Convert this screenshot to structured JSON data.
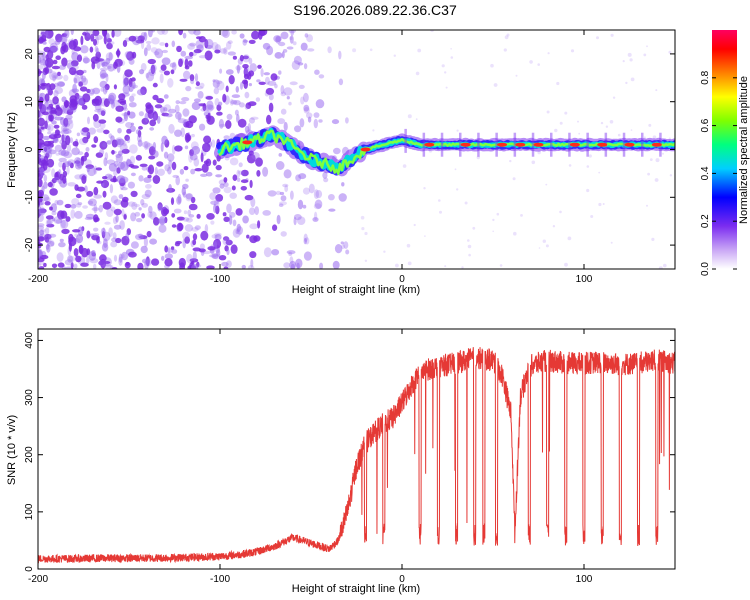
{
  "figure": {
    "title": "S196.2026.089.22.36.C37"
  },
  "colors": {
    "snr_line": "#e53935",
    "spectrogram_noise": "#9b6cf0",
    "spectrogram_ridge": "#00e5c0"
  },
  "chart_data": [
    {
      "type": "heatmap",
      "title": "S196.2026.089.22.36.C37",
      "xlabel": "Height of straight line (km)",
      "ylabel": "Frequency (Hz)",
      "xlim": [
        -200,
        150
      ],
      "ylim": [
        -25,
        25
      ],
      "xticks": [
        {
          "value": -200,
          "label": "-200"
        },
        {
          "value": -100,
          "label": "-100"
        },
        {
          "value": 0,
          "label": "0"
        },
        {
          "value": 100,
          "label": "100"
        }
      ],
      "yticks": [
        {
          "value": 20,
          "label": "20"
        },
        {
          "value": 10,
          "label": "10"
        },
        {
          "value": 0,
          "label": "0"
        },
        {
          "value": -10,
          "label": "-10"
        },
        {
          "value": -20,
          "label": "-20"
        }
      ],
      "colorbar": {
        "label": "Normalized spectral amplitude",
        "range": [
          0,
          1
        ],
        "ticks": [
          {
            "value": 0.0,
            "label": "0.0"
          },
          {
            "value": 0.2,
            "label": "0.2"
          },
          {
            "value": 0.4,
            "label": "0.4"
          },
          {
            "value": 0.6,
            "label": "0.6"
          },
          {
            "value": 0.8,
            "label": "0.8"
          }
        ]
      },
      "ridge": {
        "x": [
          -100,
          -90,
          -80,
          -72,
          -65,
          -58,
          -50,
          -42,
          -35,
          -28,
          -20,
          -10,
          0,
          10,
          20,
          40,
          60,
          80,
          100,
          120,
          150
        ],
        "frequency": [
          0,
          1,
          2,
          3,
          2,
          0,
          -2,
          -3,
          -4,
          -2,
          0,
          1,
          2,
          1,
          1,
          1,
          1,
          1,
          1,
          1,
          1
        ]
      }
    },
    {
      "type": "line",
      "xlabel": "Height of straight line (km)",
      "ylabel": "SNR (10 * v/v)",
      "xlim": [
        -200,
        150
      ],
      "ylim": [
        0,
        420
      ],
      "xticks": [
        {
          "value": -200,
          "label": "-200"
        },
        {
          "value": -100,
          "label": "-100"
        },
        {
          "value": 0,
          "label": "0"
        },
        {
          "value": 100,
          "label": "100"
        }
      ],
      "yticks": [
        {
          "value": 0,
          "label": "0"
        },
        {
          "value": 100,
          "label": "100"
        },
        {
          "value": 200,
          "label": "200"
        },
        {
          "value": 300,
          "label": "300"
        },
        {
          "value": 400,
          "label": "400"
        }
      ],
      "series": [
        {
          "name": "SNR",
          "x": [
            -200,
            -180,
            -160,
            -140,
            -120,
            -100,
            -90,
            -80,
            -70,
            -60,
            -50,
            -40,
            -35,
            -30,
            -25,
            -20,
            -15,
            -10,
            -5,
            0,
            5,
            10,
            20,
            30,
            40,
            50,
            55,
            60,
            62,
            65,
            70,
            80,
            90,
            100,
            110,
            120,
            130,
            140,
            150
          ],
          "values": [
            18,
            18,
            19,
            19,
            20,
            22,
            25,
            30,
            40,
            55,
            45,
            35,
            50,
            100,
            180,
            220,
            240,
            255,
            265,
            290,
            320,
            345,
            355,
            360,
            370,
            365,
            340,
            270,
            60,
            300,
            355,
            365,
            360,
            360,
            362,
            358,
            360,
            365,
            360
          ]
        }
      ]
    }
  ]
}
